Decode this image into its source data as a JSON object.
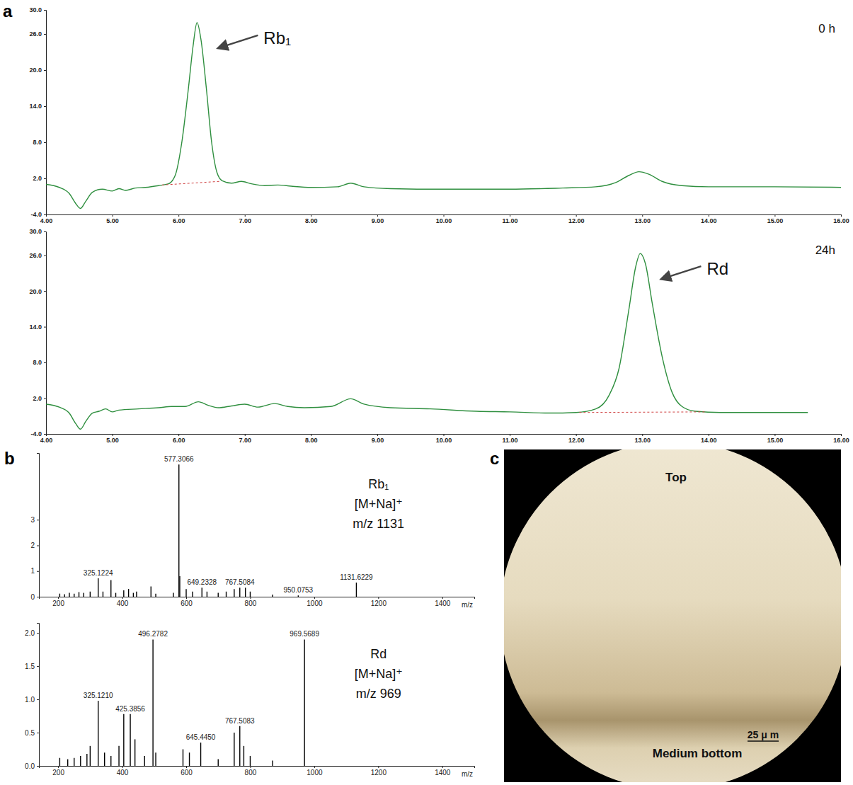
{
  "panel_labels": [
    "a",
    "b",
    "c"
  ],
  "chart_data": [
    {
      "type": "line",
      "subtitle": "0 h",
      "color": "#2f8f3f",
      "x": [
        4.0,
        4.2,
        4.35,
        4.45,
        4.52,
        4.6,
        4.7,
        4.85,
        5.0,
        5.1,
        5.2,
        5.35,
        5.5,
        5.7,
        5.85,
        5.95,
        6.05,
        6.15,
        6.22,
        6.28,
        6.34,
        6.42,
        6.5,
        6.58,
        6.66,
        6.8,
        6.95,
        7.1,
        7.3,
        7.5,
        7.7,
        8.0,
        8.4,
        8.6,
        8.8,
        9.2,
        10,
        11,
        11.8,
        12.3,
        12.6,
        12.8,
        12.95,
        13.1,
        13.3,
        13.6,
        14,
        15,
        16
      ],
      "values": [
        1.0,
        0.5,
        -0.5,
        -2.2,
        -3.0,
        -1.8,
        -0.3,
        0.2,
        -0.1,
        0.3,
        0.0,
        0.4,
        0.5,
        0.8,
        1.1,
        2.5,
        8,
        17,
        24,
        27.9,
        25,
        17,
        8,
        3,
        1.6,
        1.2,
        1.5,
        1.1,
        0.8,
        0.9,
        0.7,
        0.5,
        0.6,
        1.2,
        0.6,
        0.3,
        0.2,
        0.2,
        0.4,
        0.6,
        1.3,
        2.5,
        3.1,
        2.7,
        1.5,
        0.8,
        0.6,
        0.6,
        0.5
      ],
      "baseline": {
        "x": [
          5.75,
          6.62
        ],
        "values": [
          0.9,
          1.5
        ]
      },
      "annotations": [
        {
          "text": "Rb₁"
        }
      ],
      "xlim": [
        4,
        16
      ],
      "ylim": [
        -4,
        30
      ],
      "xticks": [
        {
          "value": 4,
          "label": "4.00"
        },
        {
          "value": 5,
          "label": "5.00"
        },
        {
          "value": 6,
          "label": "6.00"
        },
        {
          "value": 7,
          "label": "7.00"
        },
        {
          "value": 8,
          "label": "8.00"
        },
        {
          "value": 9,
          "label": "9.00"
        },
        {
          "value": 10,
          "label": "10.00"
        },
        {
          "value": 11,
          "label": "11.00"
        },
        {
          "value": 12,
          "label": "12.00"
        },
        {
          "value": 13,
          "label": "13.00"
        },
        {
          "value": 14,
          "label": "14.00"
        },
        {
          "value": 15,
          "label": "15.00"
        },
        {
          "value": 16,
          "label": "16.00"
        }
      ],
      "yticks": [
        {
          "value": -4,
          "label": "-4.0"
        },
        {
          "value": 2,
          "label": "2.0"
        },
        {
          "value": 8,
          "label": "8.0"
        },
        {
          "value": 14,
          "label": "14.0"
        },
        {
          "value": 20,
          "label": "20.0"
        },
        {
          "value": 26,
          "label": "26.0"
        },
        {
          "value": 30,
          "label": "30.0"
        }
      ]
    },
    {
      "type": "line",
      "subtitle": "24h",
      "color": "#2f8f3f",
      "x": [
        4.0,
        4.2,
        4.35,
        4.45,
        4.52,
        4.6,
        4.7,
        4.8,
        4.9,
        5.0,
        5.1,
        5.4,
        5.7,
        5.9,
        6.1,
        6.3,
        6.45,
        6.6,
        6.8,
        7.0,
        7.2,
        7.45,
        7.65,
        7.9,
        8.3,
        8.6,
        8.8,
        9.2,
        9.8,
        10.5,
        11,
        11.6,
        12.0,
        12.3,
        12.5,
        12.65,
        12.8,
        12.9,
        12.97,
        13.05,
        13.15,
        13.3,
        13.45,
        13.6,
        13.8,
        14.2,
        15.0,
        15.5
      ],
      "values": [
        1.0,
        0.5,
        -0.5,
        -2.3,
        -3.2,
        -1.9,
        -0.5,
        -0.2,
        0.2,
        -0.3,
        0.0,
        0.2,
        0.4,
        0.6,
        0.6,
        1.4,
        0.8,
        0.4,
        0.7,
        1.0,
        0.5,
        1.1,
        0.6,
        0.4,
        0.6,
        1.9,
        1.0,
        0.4,
        0.2,
        -0.2,
        -0.3,
        -0.5,
        -0.4,
        0.2,
        2.5,
        7,
        17,
        24,
        26.3,
        24.5,
        18,
        9,
        3,
        0.6,
        -0.2,
        -0.4,
        -0.4,
        -0.4
      ],
      "baseline": {
        "x": [
          12.05,
          13.95
        ],
        "values": [
          -0.4,
          -0.3
        ]
      },
      "annotations": [
        {
          "text": "Rd"
        }
      ],
      "xlim": [
        4,
        16
      ],
      "ylim": [
        -4,
        30
      ],
      "xticks": [
        {
          "value": 4,
          "label": "4.00"
        },
        {
          "value": 5,
          "label": "5.00"
        },
        {
          "value": 6,
          "label": "6.00"
        },
        {
          "value": 7,
          "label": "7.00"
        },
        {
          "value": 8,
          "label": "8.00"
        },
        {
          "value": 9,
          "label": "9.00"
        },
        {
          "value": 10,
          "label": "10.00"
        },
        {
          "value": 11,
          "label": "11.00"
        },
        {
          "value": 12,
          "label": "12.00"
        },
        {
          "value": 13,
          "label": "13.00"
        },
        {
          "value": 14,
          "label": "14.00"
        },
        {
          "value": 15,
          "label": "15.00"
        },
        {
          "value": 16,
          "label": "16.00"
        }
      ],
      "yticks": [
        {
          "value": -4,
          "label": "-4.0"
        },
        {
          "value": 2,
          "label": "2.0"
        },
        {
          "value": 8,
          "label": "8.0"
        },
        {
          "value": 14,
          "label": "14.0"
        },
        {
          "value": 20,
          "label": "20.0"
        },
        {
          "value": 26,
          "label": "26.0"
        },
        {
          "value": 30,
          "label": "30.0"
        }
      ]
    },
    {
      "type": "stem",
      "color": "#000000",
      "x_label": "m/z",
      "x": [
        205,
        220,
        235,
        250,
        265,
        280,
        300,
        325.1224,
        340,
        365,
        380,
        405,
        420,
        435,
        445,
        490,
        505,
        560,
        577.3066,
        580,
        600,
        620,
        649.2328,
        665,
        700,
        725,
        750,
        767.5084,
        785,
        800,
        870,
        950.0753,
        1131.6229
      ],
      "values": [
        0.12,
        0.1,
        0.15,
        0.12,
        0.18,
        0.15,
        0.2,
        0.72,
        0.2,
        0.65,
        0.15,
        0.25,
        0.3,
        0.15,
        0.2,
        0.4,
        0.12,
        0.15,
        5.15,
        0.8,
        0.3,
        0.2,
        0.35,
        0.2,
        0.15,
        0.2,
        0.3,
        0.35,
        0.35,
        0.2,
        0.08,
        0.05,
        0.55
      ],
      "x_labels": [
        null,
        null,
        null,
        null,
        null,
        null,
        null,
        "325.1224",
        null,
        null,
        null,
        null,
        null,
        null,
        null,
        null,
        null,
        null,
        "577.3066",
        null,
        null,
        null,
        "649.2328",
        null,
        null,
        null,
        null,
        "767.5084",
        null,
        null,
        null,
        "950.0753",
        "1131.6229"
      ],
      "annotations": [
        {
          "text": "Rb₁"
        },
        {
          "text": "[M+Na]⁺"
        },
        {
          "text": "m/z 1131"
        }
      ],
      "xlim": [
        140,
        1500
      ],
      "ylim": [
        0,
        5.6
      ],
      "xticks": [
        200,
        400,
        600,
        800,
        1000,
        1200,
        1400
      ],
      "yticks": [
        0,
        1,
        2,
        3
      ]
    },
    {
      "type": "stem",
      "color": "#000000",
      "x_label": "m/z",
      "x": [
        205,
        230,
        250,
        270,
        290,
        300,
        325.121,
        345,
        365,
        390,
        405,
        425.3856,
        440,
        470,
        496.2782,
        505,
        590,
        610,
        645.445,
        700,
        750,
        767.5083,
        780,
        800,
        870,
        969.5689
      ],
      "values": [
        0.12,
        0.1,
        0.12,
        0.15,
        0.18,
        0.3,
        0.98,
        0.2,
        0.15,
        0.3,
        0.78,
        0.78,
        0.4,
        0.15,
        1.9,
        0.2,
        0.25,
        0.2,
        0.35,
        0.1,
        0.5,
        0.6,
        0.3,
        0.15,
        0.08,
        1.9
      ],
      "x_labels": [
        null,
        null,
        null,
        null,
        null,
        null,
        "325.1210",
        null,
        null,
        null,
        null,
        "425.3856",
        null,
        null,
        "496.2782",
        null,
        null,
        null,
        "645.4450",
        null,
        null,
        "767.5083",
        null,
        null,
        null,
        "969.5689"
      ],
      "annotations": [
        {
          "text": "Rd"
        },
        {
          "text": "[M+Na]⁺"
        },
        {
          "text": "m/z 969"
        }
      ],
      "xlim": [
        140,
        1500
      ],
      "ylim": [
        0,
        2.15
      ],
      "xticks": [
        200,
        400,
        600,
        800,
        1000,
        1200,
        1400
      ],
      "yticks": [
        {
          "value": 0,
          "label": "0.0"
        },
        {
          "value": 0.5,
          "label": "0.5"
        },
        {
          "value": 1,
          "label": "1.0"
        },
        {
          "value": 1.5,
          "label": "1.5"
        },
        {
          "value": 2,
          "label": "2.0"
        }
      ]
    }
  ],
  "image": {
    "labels": [
      "Top",
      "Medium bottom"
    ],
    "scale_bar": "25 μ m"
  }
}
